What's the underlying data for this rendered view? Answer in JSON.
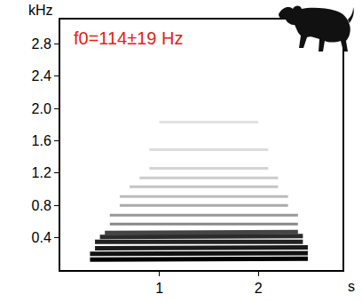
{
  "chart_data": {
    "type": "line",
    "title": "f0=114±19 Hz",
    "xlabel": "s",
    "ylabel": "kHz",
    "xlim": [
      0,
      2.85
    ],
    "xticks": [
      1,
      2
    ],
    "ylim": [
      0,
      3.1
    ],
    "yticks": [
      0.4,
      0.8,
      1.2,
      1.6,
      2.0,
      2.4,
      2.8
    ],
    "series": [
      {
        "x": [
          0.3,
          2.5
        ],
        "values": [
          0.13,
          0.14
        ],
        "color": "#000000"
      },
      {
        "x": [
          0.3,
          2.5
        ],
        "values": [
          0.2,
          0.21
        ],
        "color": "#111111"
      },
      {
        "x": [
          0.35,
          2.5
        ],
        "values": [
          0.27,
          0.28
        ],
        "color": "#1a1a1a"
      },
      {
        "x": [
          0.35,
          2.45
        ],
        "values": [
          0.35,
          0.35
        ],
        "color": "#222222"
      },
      {
        "x": [
          0.4,
          2.45
        ],
        "values": [
          0.41,
          0.42
        ],
        "color": "#2a2a2a"
      },
      {
        "x": [
          0.45,
          2.4
        ],
        "values": [
          0.46,
          0.47
        ],
        "color": "#444444"
      },
      {
        "x": [
          0.5,
          2.4
        ],
        "values": [
          0.57,
          0.57
        ],
        "color": "#888888"
      },
      {
        "x": [
          0.5,
          2.4
        ],
        "values": [
          0.68,
          0.68
        ],
        "color": "#999999"
      },
      {
        "x": [
          0.6,
          2.3
        ],
        "values": [
          0.8,
          0.8
        ],
        "color": "#aaaaaa"
      },
      {
        "x": [
          0.6,
          2.3
        ],
        "values": [
          0.91,
          0.91
        ],
        "color": "#bbbbbb"
      },
      {
        "x": [
          0.7,
          2.2
        ],
        "values": [
          1.03,
          1.03
        ],
        "color": "#c4c4c4"
      },
      {
        "x": [
          0.8,
          2.2
        ],
        "values": [
          1.14,
          1.14
        ],
        "color": "#cccccc"
      },
      {
        "x": [
          0.9,
          2.1
        ],
        "values": [
          1.26,
          1.26
        ],
        "color": "#d4d4d4"
      },
      {
        "x": [
          0.9,
          2.1
        ],
        "values": [
          1.49,
          1.49
        ],
        "color": "#dddddd"
      },
      {
        "x": [
          1.0,
          2.0
        ],
        "values": [
          1.83,
          1.83
        ],
        "color": "#e2e2e2"
      }
    ]
  }
}
